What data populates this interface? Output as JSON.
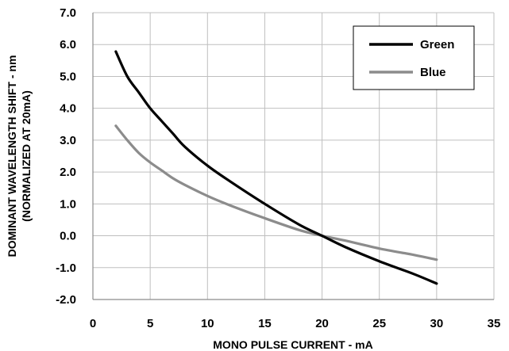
{
  "chart_data": {
    "type": "line",
    "title": "",
    "xlabel": "MONO PULSE CURRENT - mA",
    "ylabel_line1": "DOMINANT WAVELENGTH SHIFT - nm",
    "ylabel_line2": "(NORMALIZED AT 20mA)",
    "xlim": [
      0,
      35
    ],
    "ylim": [
      -2.0,
      7.0
    ],
    "x_ticks": [
      0,
      5,
      10,
      15,
      20,
      25,
      30,
      35
    ],
    "x_tick_labels": [
      "0",
      "5",
      "10",
      "15",
      "20",
      "25",
      "30",
      "35"
    ],
    "y_ticks": [
      7.0,
      6.0,
      5.0,
      4.0,
      3.0,
      2.0,
      1.0,
      0.0,
      -1.0,
      -2.0
    ],
    "y_tick_labels": [
      "7.0",
      "6.0",
      "5.0",
      "4.0",
      "3.0",
      "2.0",
      "1.0",
      "0.0",
      "-1.0",
      "-2.0"
    ],
    "grid": true,
    "legend_position": "top-right",
    "series": [
      {
        "name": "Green",
        "color": "#000000",
        "x": [
          2,
          3,
          4,
          5,
          6,
          7,
          8,
          10,
          12,
          15,
          18,
          20,
          22,
          25,
          28,
          30
        ],
        "y": [
          5.78,
          5.0,
          4.5,
          4.0,
          3.6,
          3.2,
          2.8,
          2.2,
          1.7,
          1.0,
          0.35,
          0.0,
          -0.35,
          -0.8,
          -1.2,
          -1.5
        ]
      },
      {
        "name": "Blue",
        "color": "#8c8c8c",
        "x": [
          2,
          3,
          4,
          5,
          6,
          7,
          8,
          10,
          12,
          15,
          18,
          20,
          22,
          25,
          28,
          30
        ],
        "y": [
          3.45,
          3.0,
          2.6,
          2.3,
          2.05,
          1.8,
          1.6,
          1.25,
          0.95,
          0.55,
          0.18,
          0.0,
          -0.15,
          -0.4,
          -0.6,
          -0.75
        ]
      }
    ]
  }
}
